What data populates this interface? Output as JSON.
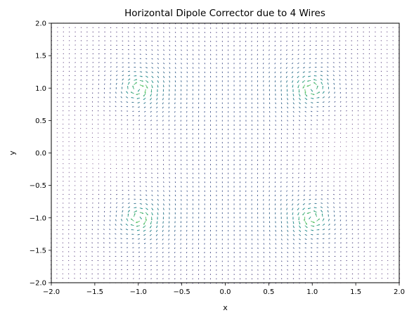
{
  "chart_data": {
    "type": "quiver",
    "title": "Horizontal Dipole Corrector due to 4 Wires",
    "xlabel": "x",
    "ylabel": "y",
    "xlim": [
      -2.0,
      2.0
    ],
    "ylim": [
      -2.0,
      2.0
    ],
    "xticks": [
      "−2.0",
      "−1.5",
      "−1.0",
      "−0.5",
      "0.0",
      "0.5",
      "1.0",
      "1.5",
      "2.0"
    ],
    "yticks": [
      "−2.0",
      "−1.5",
      "−1.0",
      "−0.5",
      "0.0",
      "0.5",
      "1.0",
      "1.5",
      "2.0"
    ],
    "xtick_values": [
      -2.0,
      -1.5,
      -1.0,
      -0.5,
      0.0,
      0.5,
      1.0,
      1.5,
      2.0
    ],
    "ytick_values": [
      -2.0,
      -1.5,
      -1.0,
      -0.5,
      0.0,
      0.5,
      1.0,
      1.5,
      2.0
    ],
    "wires": [
      {
        "x": -1.0,
        "y": 1.0,
        "current": -1
      },
      {
        "x": 1.0,
        "y": 1.0,
        "current": 1
      },
      {
        "x": -1.0,
        "y": -1.0,
        "current": -1
      },
      {
        "x": 1.0,
        "y": -1.0,
        "current": 1
      }
    ],
    "grid_points": 60,
    "colormap": "viridis",
    "colormap_stops": [
      "#440154",
      "#3b528b",
      "#21918c",
      "#5ec962",
      "#fde725"
    ],
    "grid": false,
    "legend": "none"
  }
}
